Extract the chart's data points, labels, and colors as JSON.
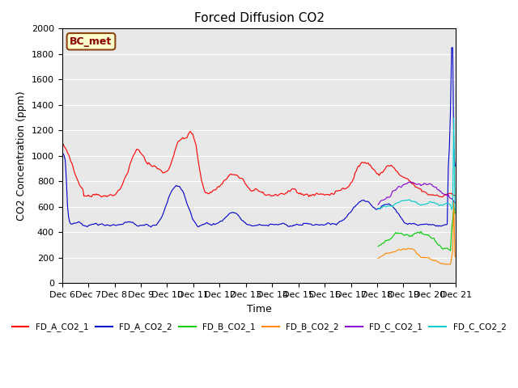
{
  "title": "Forced Diffusion CO2",
  "ylabel": "CO2 Concentration (ppm)",
  "xlabel": "Time",
  "ylim": [
    0,
    2000
  ],
  "background_color": "#e8e8e8",
  "annotation_text": "BC_met",
  "annotation_bg": "#ffffcc",
  "annotation_border": "#8B4513",
  "series": {
    "FD_A_CO2_1": {
      "color": "#ff0000",
      "label": "FD_A_CO2_1"
    },
    "FD_A_CO2_2": {
      "color": "#0000cc",
      "label": "FD_A_CO2_2"
    },
    "FD_B_CO2_1": {
      "color": "#00cc00",
      "label": "FD_B_CO2_1"
    },
    "FD_B_CO2_2": {
      "color": "#ff8800",
      "label": "FD_B_CO2_2"
    },
    "FD_C_CO2_1": {
      "color": "#8800cc",
      "label": "FD_C_CO2_1"
    },
    "FD_C_CO2_2": {
      "color": "#00cccc",
      "label": "FD_C_CO2_2"
    }
  },
  "xtick_labels": [
    "Dec 6",
    "Dec 7",
    "Dec 8",
    "Dec 9",
    "Dec 10",
    "Dec 11",
    "Dec 12",
    "Dec 13",
    "Dec 14",
    "Dec 15",
    "Dec 16",
    "Dec 17",
    "Dec 18",
    "Dec 19",
    "Dec 20",
    "Dec 21"
  ],
  "legend_order": [
    "FD_A_CO2_1",
    "FD_A_CO2_2",
    "FD_B_CO2_1",
    "FD_B_CO2_2",
    "FD_C_CO2_1",
    "FD_C_CO2_2"
  ]
}
